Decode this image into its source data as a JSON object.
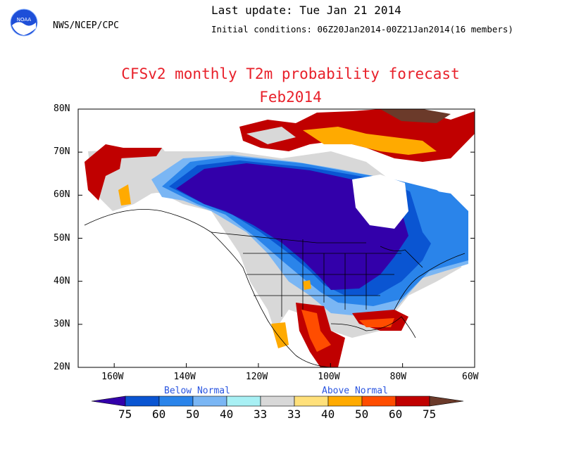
{
  "header": {
    "agency": "NWS/NCEP/CPC",
    "last_update": "Last update: Tue Jan 21 2014",
    "initial_conditions": "Initial conditions: 06Z20Jan2014-00Z21Jan2014(16 members)",
    "logo_text": "NOAA"
  },
  "title": "CFSv2 monthly T2m probability forecast",
  "subtitle": "Feb2014",
  "map": {
    "lat_labels": [
      "80N",
      "70N",
      "60N",
      "50N",
      "40N",
      "30N",
      "20N"
    ],
    "lon_labels": [
      "160W",
      "140W",
      "120W",
      "100W",
      "80W",
      "60W"
    ],
    "lat_range": [
      20,
      80
    ],
    "lon_range": [
      -170,
      -60
    ]
  },
  "legend": {
    "below_label": "Below Normal",
    "above_label": "Above Normal",
    "ticks": [
      "75",
      "60",
      "50",
      "40",
      "33",
      "33",
      "40",
      "50",
      "60",
      "75"
    ],
    "colors": [
      "#3300aa",
      "#0a55d2",
      "#2a84ea",
      "#7ab6f4",
      "#a8f0f4",
      "#d8d8d8",
      "#ffe07a",
      "#ffaa00",
      "#ff4d00",
      "#c00000",
      "#6b3a2a"
    ]
  }
}
